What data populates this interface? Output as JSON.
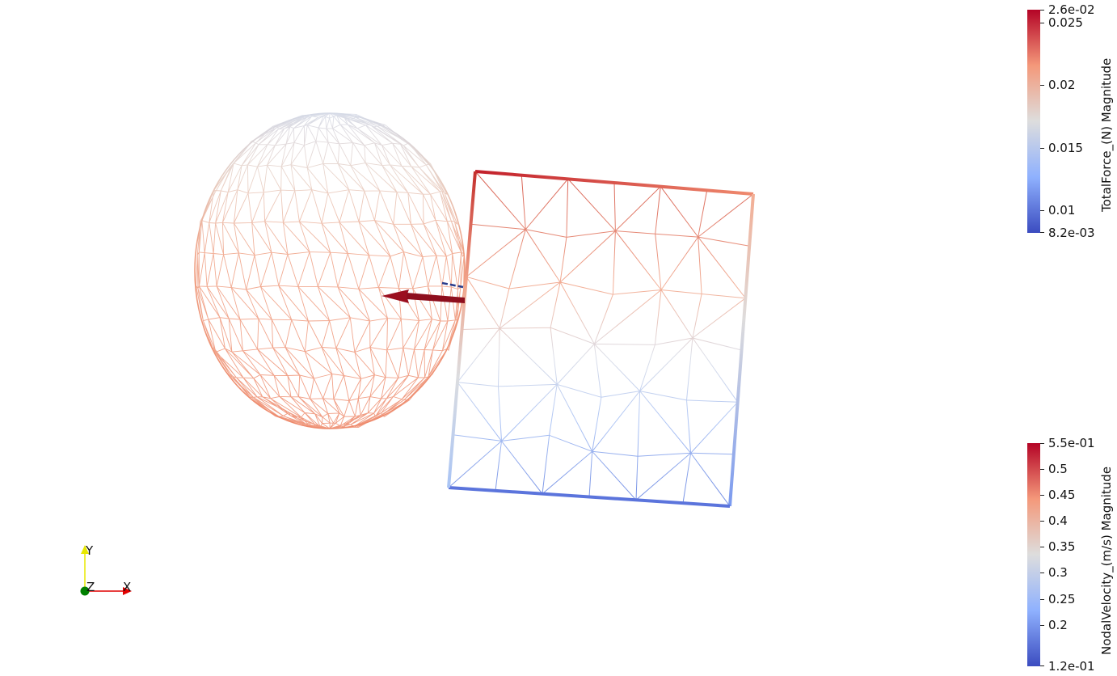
{
  "colors": {
    "cool": "#3b4cc0",
    "neutral": "#dddddd",
    "warm": "#b40426",
    "axis_x": "#e00000",
    "axis_y": "#e8e800",
    "axis_z": "#008000"
  },
  "scene": {
    "objects": [
      {
        "name": "sphere-mesh",
        "render": "wireframe"
      },
      {
        "name": "plate-mesh",
        "render": "wireframe"
      },
      {
        "name": "force-arrow",
        "render": "glyph"
      }
    ]
  },
  "legend_force": {
    "title": "TotalForce_(N) Magnitude",
    "min": 0.0082,
    "max": 0.026,
    "min_label": "8.2e-03",
    "max_label": "2.6e-02",
    "ticks": [
      {
        "value": 0.025,
        "label": "0.025"
      },
      {
        "value": 0.02,
        "label": "0.02"
      },
      {
        "value": 0.015,
        "label": "0.015"
      },
      {
        "value": 0.01,
        "label": "0.01"
      }
    ]
  },
  "legend_velocity": {
    "title": "NodalVelocity_(m/s) Magnitude",
    "min": 0.12,
    "max": 0.55,
    "min_label": "1.2e-01",
    "max_label": "5.5e-01",
    "ticks": [
      {
        "value": 0.5,
        "label": "0.5"
      },
      {
        "value": 0.45,
        "label": "0.45"
      },
      {
        "value": 0.4,
        "label": "0.4"
      },
      {
        "value": 0.35,
        "label": "0.35"
      },
      {
        "value": 0.3,
        "label": "0.3"
      },
      {
        "value": 0.25,
        "label": "0.25"
      },
      {
        "value": 0.2,
        "label": "0.2"
      }
    ]
  },
  "axes": {
    "x_label": "X",
    "y_label": "Y",
    "z_label": "Z"
  }
}
